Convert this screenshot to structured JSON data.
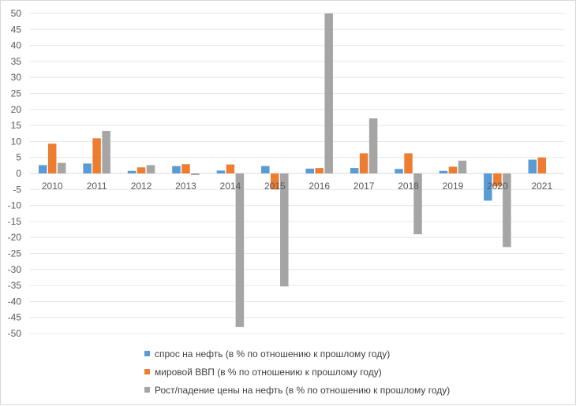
{
  "chart_data": {
    "type": "bar",
    "title": "",
    "xlabel": "",
    "ylabel": "",
    "categories": [
      "2010",
      "2011",
      "2012",
      "2013",
      "2014",
      "2015",
      "2016",
      "2017",
      "2018",
      "2019",
      "2020",
      "2021"
    ],
    "ylim": [
      -50,
      50
    ],
    "ytick_step": 5,
    "grid": true,
    "legend_position": "bottom",
    "series": [
      {
        "name": "спрос на нефть (в % по отношению к прошлому году)",
        "color": "#5b9bd5",
        "values": [
          2.6,
          3.1,
          0.8,
          2.3,
          0.9,
          2.3,
          1.5,
          1.7,
          1.4,
          0.8,
          -8.5,
          4.3
        ]
      },
      {
        "name": "мировой ВВП (в % по отношению к прошлому году)",
        "color": "#ed7d31",
        "values": [
          9.3,
          11.0,
          1.9,
          2.9,
          2.8,
          -5.0,
          1.7,
          6.3,
          6.3,
          2.1,
          -4.0,
          5.0
        ]
      },
      {
        "name": "Рост/падение цены на нефть (в % по отношению к прошлому году)",
        "color": "#a5a5a5",
        "values": [
          3.3,
          13.3,
          2.6,
          -0.5,
          -48.0,
          -35.3,
          50.0,
          17.2,
          -19.0,
          4.0,
          -23.0,
          0
        ]
      }
    ]
  }
}
